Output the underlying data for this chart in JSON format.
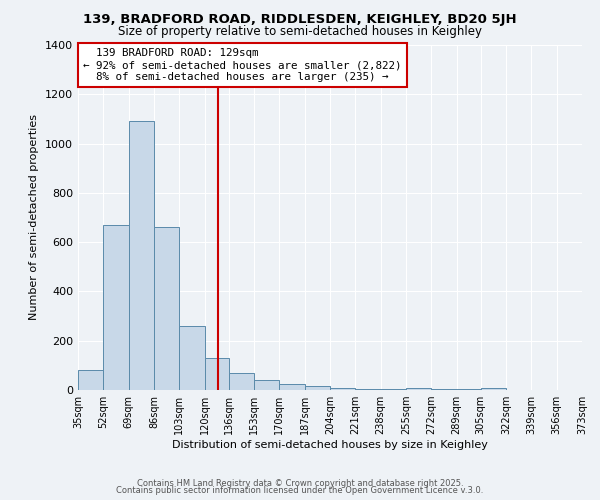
{
  "title1": "139, BRADFORD ROAD, RIDDLESDEN, KEIGHLEY, BD20 5JH",
  "title2": "Size of property relative to semi-detached houses in Keighley",
  "xlabel": "Distribution of semi-detached houses by size in Keighley",
  "ylabel": "Number of semi-detached properties",
  "bin_edges": [
    35,
    52,
    69,
    86,
    103,
    120,
    136,
    153,
    170,
    187,
    204,
    221,
    238,
    255,
    272,
    289,
    305,
    322,
    339,
    356,
    373
  ],
  "bar_heights": [
    80,
    670,
    1090,
    660,
    260,
    130,
    70,
    40,
    25,
    15,
    8,
    5,
    3,
    10,
    5,
    3,
    8,
    0,
    0,
    0
  ],
  "bar_color": "#c8d8e8",
  "bar_edge_color": "#5a8aaa",
  "property_size": 129,
  "property_label": "139 BRADFORD ROAD: 129sqm",
  "pct_smaller": 92,
  "n_smaller": 2822,
  "pct_larger": 8,
  "n_larger": 235,
  "vline_color": "#cc0000",
  "annotation_box_color": "#cc0000",
  "background_color": "#eef2f6",
  "ylim": [
    0,
    1400
  ],
  "yticks": [
    0,
    200,
    400,
    600,
    800,
    1000,
    1200,
    1400
  ],
  "tick_labels": [
    "35sqm",
    "52sqm",
    "69sqm",
    "86sqm",
    "103sqm",
    "120sqm",
    "136sqm",
    "153sqm",
    "170sqm",
    "187sqm",
    "204sqm",
    "221sqm",
    "238sqm",
    "255sqm",
    "272sqm",
    "289sqm",
    "305sqm",
    "322sqm",
    "339sqm",
    "356sqm",
    "373sqm"
  ],
  "footer1": "Contains HM Land Registry data © Crown copyright and database right 2025.",
  "footer2": "Contains public sector information licensed under the Open Government Licence v.3.0."
}
